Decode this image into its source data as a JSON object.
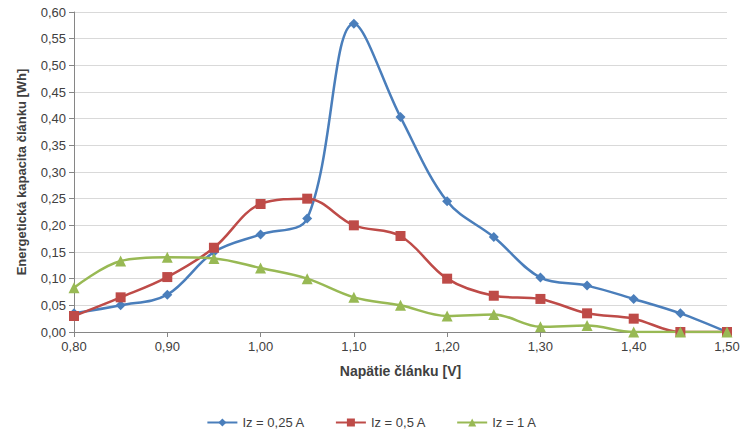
{
  "chart_data": {
    "type": "line",
    "x_label": "Napätie článku [V]",
    "y_label": "Energetická kapacita článku [Wh]",
    "x": [
      0.8,
      0.85,
      0.9,
      0.95,
      1.0,
      1.05,
      1.1,
      1.15,
      1.2,
      1.25,
      1.3,
      1.35,
      1.4,
      1.45,
      1.5
    ],
    "series": [
      {
        "name": "Iz = 0,25 A",
        "color": "#4a7ebb",
        "marker": "diamond",
        "values": [
          0.035,
          0.05,
          0.07,
          0.15,
          0.183,
          0.213,
          0.578,
          0.403,
          0.245,
          0.178,
          0.102,
          0.087,
          0.062,
          0.035,
          0.0
        ]
      },
      {
        "name": "Iz = 0,5 A",
        "color": "#be4b48",
        "marker": "square",
        "values": [
          0.03,
          0.065,
          0.103,
          0.158,
          0.24,
          0.25,
          0.2,
          0.18,
          0.1,
          0.068,
          0.062,
          0.035,
          0.025,
          0.0,
          0.0
        ]
      },
      {
        "name": "Iz = 1 A",
        "color": "#98b954",
        "marker": "triangle",
        "values": [
          0.083,
          0.133,
          0.14,
          0.138,
          0.12,
          0.1,
          0.065,
          0.05,
          0.03,
          0.033,
          0.01,
          0.012,
          0.0,
          0.0,
          0.0
        ]
      }
    ],
    "xlim": [
      0.8,
      1.5
    ],
    "xticks": [
      {
        "value": 0.8,
        "label": "0,80"
      },
      {
        "value": 0.9,
        "label": "0,90"
      },
      {
        "value": 1.0,
        "label": "1,00"
      },
      {
        "value": 1.1,
        "label": "1,10"
      },
      {
        "value": 1.2,
        "label": "1,20"
      },
      {
        "value": 1.3,
        "label": "1,30"
      },
      {
        "value": 1.4,
        "label": "1,40"
      },
      {
        "value": 1.5,
        "label": "1,50"
      }
    ],
    "ylim": [
      0,
      0.6
    ],
    "yticks": [
      {
        "value": 0,
        "label": "0,00"
      },
      {
        "value": 0.05,
        "label": "0,05"
      },
      {
        "value": 0.1,
        "label": "0,10"
      },
      {
        "value": 0.15,
        "label": "0,15"
      },
      {
        "value": 0.2,
        "label": "0,20"
      },
      {
        "value": 0.25,
        "label": "0,25"
      },
      {
        "value": 0.3,
        "label": "0,30"
      },
      {
        "value": 0.35,
        "label": "0,35"
      },
      {
        "value": 0.4,
        "label": "0,40"
      },
      {
        "value": 0.45,
        "label": "0,45"
      },
      {
        "value": 0.5,
        "label": "0,50"
      },
      {
        "value": 0.55,
        "label": "0,55"
      },
      {
        "value": 0.6,
        "label": "0,60"
      }
    ],
    "grid": true,
    "legend": "bottom",
    "line_style": "solid"
  }
}
